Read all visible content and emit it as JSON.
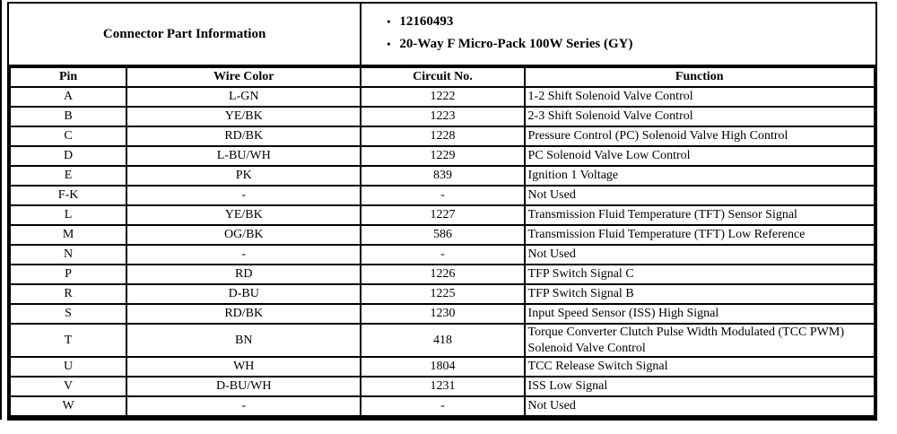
{
  "page": {
    "background": "#ffffff",
    "border_color": "#000000",
    "text_color": "#000000"
  },
  "connector_info": {
    "title": "Connector Part Information",
    "bullet_glyph": "•",
    "bullets": [
      "12160493",
      "20-Way F Micro-Pack 100W Series (GY)"
    ]
  },
  "pinout_table": {
    "columns": [
      "Pin",
      "Wire Color",
      "Circuit No.",
      "Function"
    ],
    "rows": [
      {
        "pin": "A",
        "wire_color": "L-GN",
        "circuit_no": "1222",
        "function": "1-2 Shift Solenoid Valve Control"
      },
      {
        "pin": "B",
        "wire_color": "YE/BK",
        "circuit_no": "1223",
        "function": "2-3 Shift Solenoid Valve Control"
      },
      {
        "pin": "C",
        "wire_color": "RD/BK",
        "circuit_no": "1228",
        "function": "Pressure Control (PC) Solenoid Valve High Control"
      },
      {
        "pin": "D",
        "wire_color": "L-BU/WH",
        "circuit_no": "1229",
        "function": "PC Solenoid Valve Low Control"
      },
      {
        "pin": "E",
        "wire_color": "PK",
        "circuit_no": "839",
        "function": "Ignition 1 Voltage"
      },
      {
        "pin": "F-K",
        "wire_color": "-",
        "circuit_no": "-",
        "function": "Not Used"
      },
      {
        "pin": "L",
        "wire_color": "YE/BK",
        "circuit_no": "1227",
        "function": "Transmission Fluid Temperature (TFT) Sensor Signal"
      },
      {
        "pin": "M",
        "wire_color": "OG/BK",
        "circuit_no": "586",
        "function": "Transmission Fluid Temperature (TFT) Low Reference"
      },
      {
        "pin": "N",
        "wire_color": "-",
        "circuit_no": "-",
        "function": "Not Used"
      },
      {
        "pin": "P",
        "wire_color": "RD",
        "circuit_no": "1226",
        "function": "TFP Switch Signal C"
      },
      {
        "pin": "R",
        "wire_color": "D-BU",
        "circuit_no": "1225",
        "function": "TFP Switch Signal B"
      },
      {
        "pin": "S",
        "wire_color": "RD/BK",
        "circuit_no": "1230",
        "function": "Input Speed Sensor (ISS) High Signal"
      },
      {
        "pin": "T",
        "wire_color": "BN",
        "circuit_no": "418",
        "function": "Torque Converter Clutch Pulse Width Modulated (TCC PWM) Solenoid Valve Control"
      },
      {
        "pin": "U",
        "wire_color": "WH",
        "circuit_no": "1804",
        "function": "TCC Release Switch Signal"
      },
      {
        "pin": "V",
        "wire_color": "D-BU/WH",
        "circuit_no": "1231",
        "function": "ISS Low Signal"
      },
      {
        "pin": "W",
        "wire_color": "-",
        "circuit_no": "-",
        "function": "Not Used"
      }
    ]
  }
}
